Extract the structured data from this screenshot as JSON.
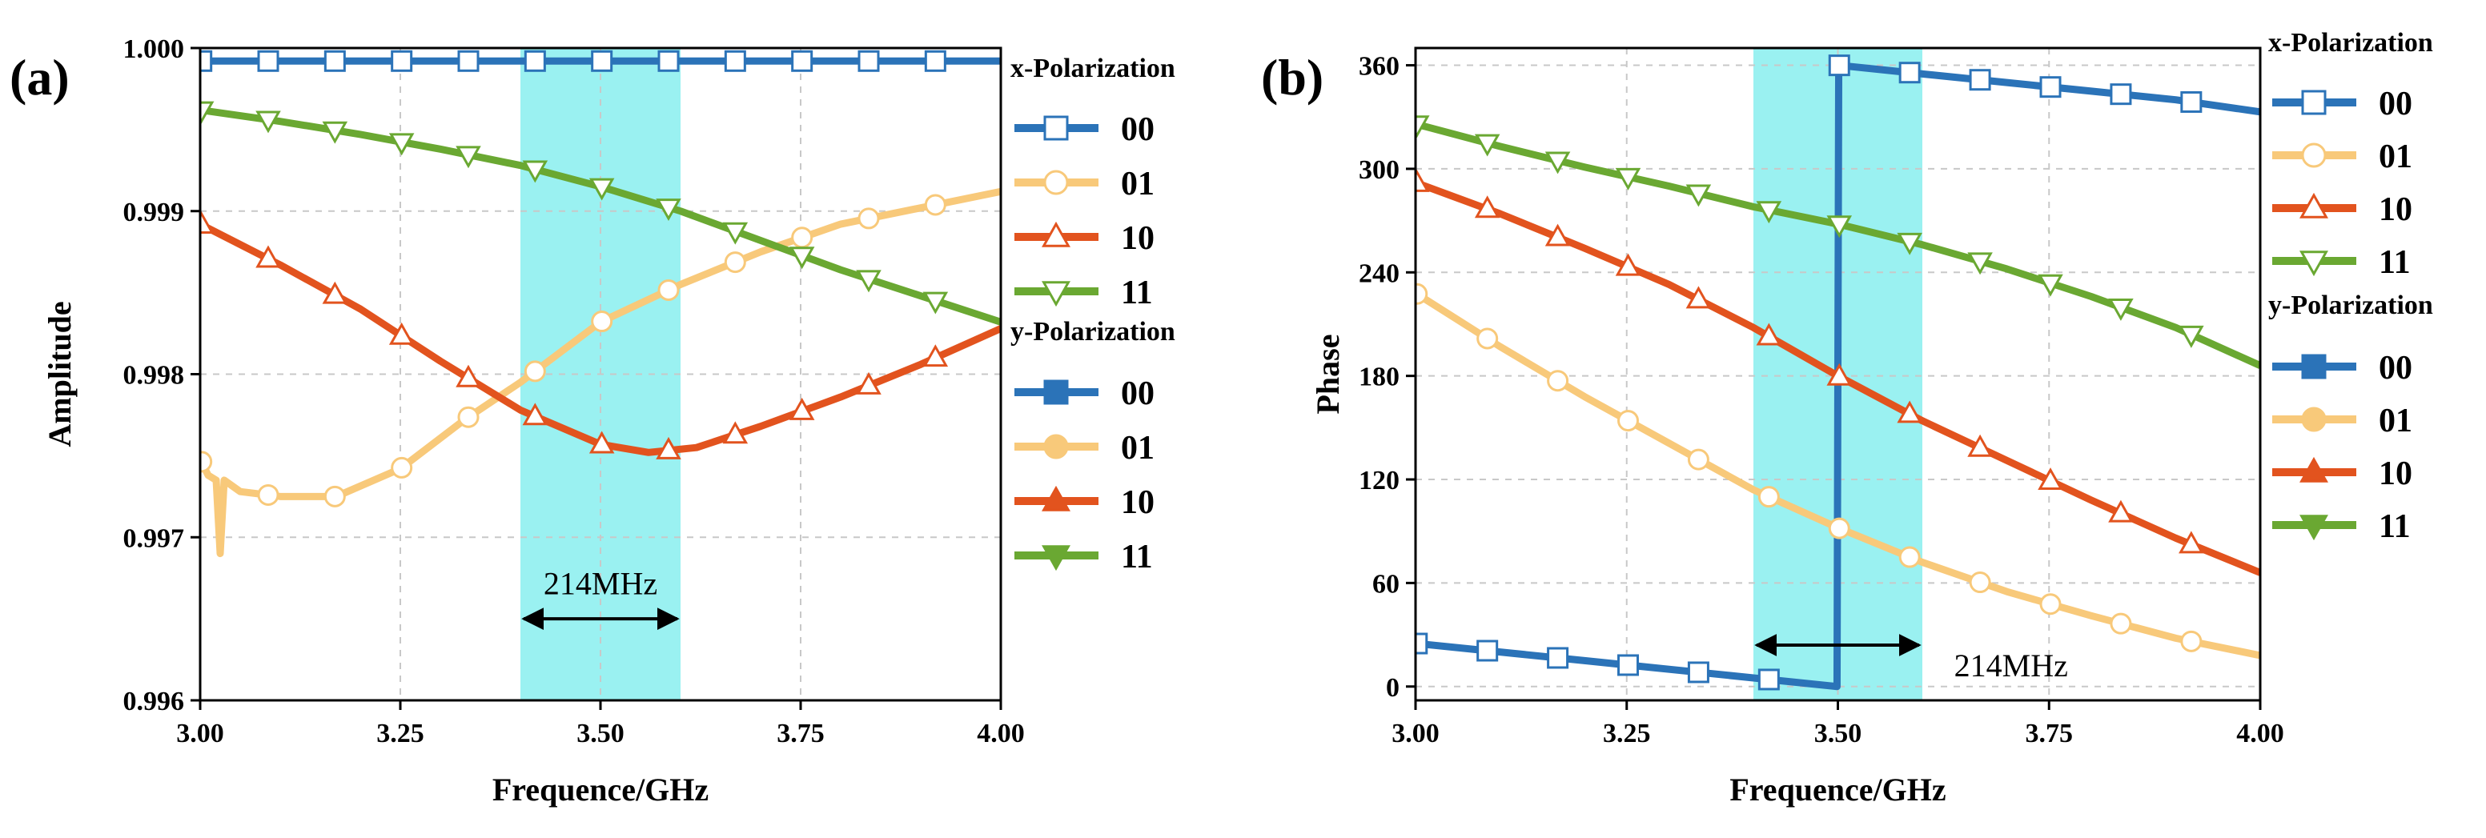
{
  "chart_data": [
    {
      "panel": "(a)",
      "type": "line",
      "xlabel": "Frequence/GHz",
      "ylabel": "Amplitude",
      "xlim": [
        3.0,
        4.0
      ],
      "ylim": [
        0.996,
        1.0
      ],
      "xticks": [
        3.0,
        3.25,
        3.5,
        3.75,
        4.0
      ],
      "xtick_labels": [
        "3.00",
        "3.25",
        "3.50",
        "3.75",
        "4.00"
      ],
      "yticks": [
        0.996,
        0.997,
        0.998,
        0.999,
        1.0
      ],
      "ytick_labels": [
        "0.996",
        "0.997",
        "0.998",
        "0.999",
        "1.000"
      ],
      "grid": true,
      "legend_position": "outside-right",
      "band": {
        "x0": 3.4,
        "x1": 3.6,
        "color": "#8ff0f0"
      },
      "annotation": {
        "text": "214MHz",
        "x0": 3.4,
        "x1": 3.6,
        "y": 0.9965,
        "label_x": 3.5,
        "label_y": 0.99665
      },
      "legend_groups": [
        {
          "title": "x-Polarization",
          "items": [
            "00",
            "01",
            "10",
            "11"
          ],
          "filled": false
        },
        {
          "title": "y-Polarization",
          "items": [
            "00",
            "01",
            "10",
            "11"
          ],
          "filled": true
        }
      ],
      "series": [
        {
          "name": "00",
          "color": "#2b73b8",
          "marker": "square",
          "x": [
            3.0,
            3.5,
            4.0
          ],
          "y": [
            0.99992,
            0.99992,
            0.99992
          ]
        },
        {
          "name": "01",
          "color": "#f8c97a",
          "marker": "circle",
          "x": [
            3.0,
            3.01,
            3.02,
            3.025,
            3.03,
            3.05,
            3.1,
            3.17,
            3.25,
            3.33,
            3.4,
            3.5,
            3.6,
            3.7,
            3.8,
            3.9,
            4.0
          ],
          "y": [
            0.99748,
            0.99738,
            0.99735,
            0.9969,
            0.99735,
            0.99728,
            0.99725,
            0.99725,
            0.99742,
            0.99772,
            0.99795,
            0.99832,
            0.99855,
            0.99875,
            0.99892,
            0.99902,
            0.99912
          ]
        },
        {
          "name": "10",
          "color": "#e2531e",
          "marker": "triangle-up",
          "x": [
            3.0,
            3.1,
            3.2,
            3.3,
            3.4,
            3.5,
            3.56,
            3.62,
            3.7,
            3.8,
            3.9,
            4.0
          ],
          "y": [
            0.99892,
            0.99867,
            0.9984,
            0.99808,
            0.99778,
            0.99757,
            0.99752,
            0.99755,
            0.99768,
            0.99786,
            0.99806,
            0.99828
          ]
        },
        {
          "name": "11",
          "color": "#6aa832",
          "marker": "triangle-down",
          "x": [
            3.0,
            3.1,
            3.2,
            3.3,
            3.4,
            3.5,
            3.6,
            3.7,
            3.8,
            3.9,
            4.0
          ],
          "y": [
            0.99962,
            0.99955,
            0.99947,
            0.99938,
            0.99928,
            0.99915,
            0.999,
            0.99882,
            0.99864,
            0.99848,
            0.99832
          ]
        }
      ]
    },
    {
      "panel": "(b)",
      "type": "line",
      "xlabel": "Frequence/GHz",
      "ylabel": "Phase",
      "xlim": [
        3.0,
        4.0
      ],
      "ylim": [
        -8,
        370
      ],
      "xticks": [
        3.0,
        3.25,
        3.5,
        3.75,
        4.0
      ],
      "xtick_labels": [
        "3.00",
        "3.25",
        "3.50",
        "3.75",
        "4.00"
      ],
      "yticks": [
        0,
        60,
        120,
        180,
        240,
        300,
        360
      ],
      "ytick_labels": [
        "0",
        "60",
        "120",
        "180",
        "240",
        "300",
        "360"
      ],
      "grid": true,
      "legend_position": "outside-right",
      "band": {
        "x0": 3.4,
        "x1": 3.6,
        "color": "#8ff0f0"
      },
      "annotation": {
        "text": "214MHz",
        "x0": 3.4,
        "x1": 3.6,
        "y": 24,
        "label_x": 3.705,
        "label_y": 6
      },
      "legend_groups": [
        {
          "title": "x-Polarization",
          "items": [
            "00",
            "01",
            "10",
            "11"
          ],
          "filled": false
        },
        {
          "title": "y-Polarization",
          "items": [
            "00",
            "01",
            "10",
            "11"
          ],
          "filled": true
        }
      ],
      "series": [
        {
          "name": "00",
          "color": "#2b73b8",
          "marker": "square",
          "x": [
            3.0,
            3.1,
            3.2,
            3.3,
            3.4,
            3.499,
            3.501,
            3.6,
            3.7,
            3.8,
            3.9,
            4.0
          ],
          "y": [
            25,
            20,
            15,
            10,
            5,
            0,
            360,
            355,
            350,
            345,
            340,
            333
          ]
        },
        {
          "name": "01",
          "color": "#f8c97a",
          "marker": "circle",
          "x": [
            3.0,
            3.1,
            3.2,
            3.3,
            3.4,
            3.5,
            3.6,
            3.7,
            3.8,
            3.9,
            4.0
          ],
          "y": [
            228,
            197,
            168,
            141,
            114,
            92,
            72,
            55,
            41,
            28,
            18
          ]
        },
        {
          "name": "10",
          "color": "#e2531e",
          "marker": "triangle-up",
          "x": [
            3.0,
            3.1,
            3.2,
            3.3,
            3.4,
            3.5,
            3.6,
            3.7,
            3.8,
            3.9,
            4.0
          ],
          "y": [
            292,
            274,
            254,
            233,
            208,
            180,
            154,
            131,
            108,
            86,
            66
          ]
        },
        {
          "name": "11",
          "color": "#6aa832",
          "marker": "triangle-down",
          "x": [
            3.0,
            3.1,
            3.2,
            3.3,
            3.4,
            3.5,
            3.6,
            3.7,
            3.8,
            3.9,
            4.0
          ],
          "y": [
            326,
            313,
            301,
            290,
            278,
            268,
            256,
            242,
            226,
            208,
            186
          ]
        }
      ]
    }
  ]
}
